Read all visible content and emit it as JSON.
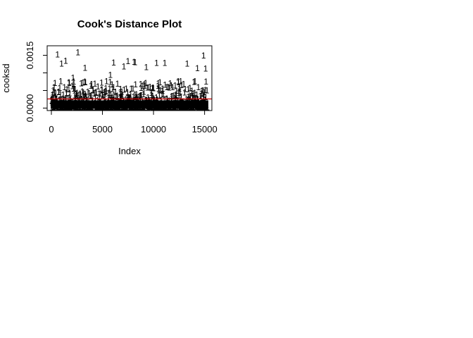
{
  "chart_data": {
    "type": "scatter",
    "title": "Cook's Distance Plot",
    "xlabel": "Index",
    "ylabel": "cooksd",
    "xlim": [
      0,
      15300
    ],
    "ylim": [
      0,
      0.0017
    ],
    "x_ticks": [
      0,
      5000,
      10000,
      15000
    ],
    "x_tick_labels": [
      "0",
      "5000",
      "10000",
      "15000"
    ],
    "y_ticks": [
      0.0,
      0.0005,
      0.001,
      0.0015
    ],
    "y_tick_labels": [
      "0.0000",
      "",
      "",
      "0.0015"
    ],
    "point_label": "1",
    "n_points": 15300,
    "cutoff": 0.00026,
    "cutoff_color": "#cc0000",
    "outliers": [
      {
        "x": 600,
        "y": 0.00152
      },
      {
        "x": 2600,
        "y": 0.00158
      },
      {
        "x": 14900,
        "y": 0.00149
      },
      {
        "x": 1400,
        "y": 0.00134
      },
      {
        "x": 7500,
        "y": 0.00133
      },
      {
        "x": 8100,
        "y": 0.00131
      },
      {
        "x": 8200,
        "y": 0.0013
      },
      {
        "x": 1000,
        "y": 0.00126
      },
      {
        "x": 6100,
        "y": 0.00129
      },
      {
        "x": 10300,
        "y": 0.00128
      },
      {
        "x": 11100,
        "y": 0.00128
      },
      {
        "x": 13300,
        "y": 0.00126
      },
      {
        "x": 7100,
        "y": 0.00118
      },
      {
        "x": 3300,
        "y": 0.00114
      },
      {
        "x": 9300,
        "y": 0.00116
      },
      {
        "x": 14300,
        "y": 0.00113
      },
      {
        "x": 15100,
        "y": 0.00112
      }
    ],
    "grid": false,
    "legend": "none"
  }
}
